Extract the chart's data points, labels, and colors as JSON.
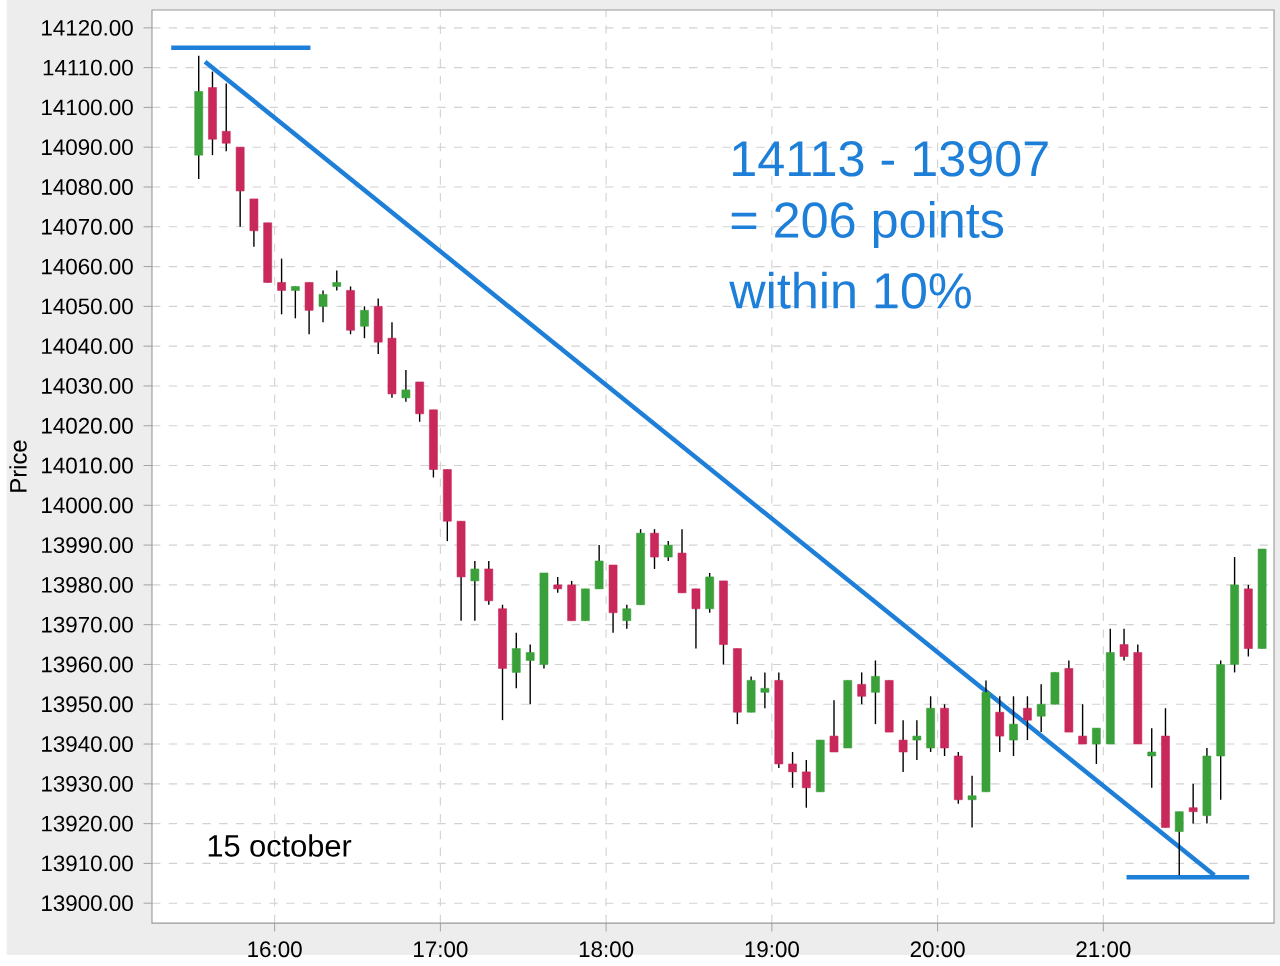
{
  "chart_data": {
    "type": "candlestick",
    "ylabel": "Price",
    "x": [
      15.542,
      15.625,
      15.708,
      15.792,
      15.875,
      15.958,
      16.042,
      16.125,
      16.208,
      16.292,
      16.375,
      16.458,
      16.542,
      16.625,
      16.708,
      16.792,
      16.875,
      16.958,
      17.042,
      17.125,
      17.208,
      17.292,
      17.375,
      17.458,
      17.542,
      17.625,
      17.708,
      17.792,
      17.875,
      17.958,
      18.042,
      18.125,
      18.208,
      18.292,
      18.375,
      18.458,
      18.542,
      18.625,
      18.708,
      18.792,
      18.875,
      18.958,
      19.042,
      19.125,
      19.208,
      19.292,
      19.375,
      19.458,
      19.542,
      19.625,
      19.708,
      19.792,
      19.875,
      19.958,
      20.042,
      20.125,
      20.208,
      20.292,
      20.375,
      20.458,
      20.542,
      20.625,
      20.708,
      20.792,
      20.875,
      20.958,
      21.042,
      21.125,
      21.208,
      21.292,
      21.375,
      21.458,
      21.542,
      21.625,
      21.708,
      21.792,
      21.875,
      21.958
    ],
    "ohlc": [
      [
        14088,
        14113,
        14082,
        14104
      ],
      [
        14105,
        14109,
        14088,
        14092
      ],
      [
        14094,
        14106,
        14089,
        14091
      ],
      [
        14090,
        14090,
        14070,
        14079
      ],
      [
        14077,
        14077,
        14065,
        14069
      ],
      [
        14071,
        14071,
        14056,
        14056
      ],
      [
        14056,
        14062,
        14048,
        14054
      ],
      [
        14054,
        14055,
        14047,
        14055
      ],
      [
        14056,
        14056,
        14043,
        14049
      ],
      [
        14050,
        14054,
        14046,
        14053
      ],
      [
        14055,
        14059,
        14054,
        14056
      ],
      [
        14054,
        14055,
        14043,
        14044
      ],
      [
        14045,
        14050,
        14042,
        14049
      ],
      [
        14050,
        14052,
        14038,
        14041
      ],
      [
        14042,
        14046,
        14027,
        14028
      ],
      [
        14027,
        14034,
        14026,
        14029
      ],
      [
        14031,
        14031,
        14021,
        14023
      ],
      [
        14024,
        14024,
        14007,
        14009
      ],
      [
        14009,
        14009,
        13991,
        13996
      ],
      [
        13996,
        13996,
        13971,
        13982
      ],
      [
        13981,
        13986,
        13971,
        13984
      ],
      [
        13984,
        13986,
        13975,
        13976
      ],
      [
        13974,
        13975,
        13946,
        13959
      ],
      [
        13958,
        13968,
        13954,
        13964
      ],
      [
        13961,
        13965,
        13950,
        13963
      ],
      [
        13960,
        13983,
        13959,
        13983
      ],
      [
        13980,
        13982,
        13978,
        13979
      ],
      [
        13980,
        13981,
        13971,
        13971
      ],
      [
        13971,
        13979,
        13971,
        13979
      ],
      [
        13979,
        13990,
        13979,
        13986
      ],
      [
        13985,
        13985,
        13968,
        13973
      ],
      [
        13971,
        13975,
        13969,
        13974
      ],
      [
        13975,
        13994,
        13975,
        13993
      ],
      [
        13993,
        13994,
        13984,
        13987
      ],
      [
        13987,
        13991,
        13986,
        13990
      ],
      [
        13988,
        13994,
        13978,
        13978
      ],
      [
        13979,
        13979,
        13964,
        13974
      ],
      [
        13974,
        13983,
        13973,
        13982
      ],
      [
        13981,
        13981,
        13960,
        13965
      ],
      [
        13964,
        13964,
        13945,
        13948
      ],
      [
        13948,
        13957,
        13948,
        13956
      ],
      [
        13953,
        13958,
        13949,
        13954
      ],
      [
        13956,
        13958,
        13934,
        13935
      ],
      [
        13935,
        13938,
        13929,
        13933
      ],
      [
        13933,
        13936,
        13924,
        13929
      ],
      [
        13928,
        13941,
        13928,
        13941
      ],
      [
        13942,
        13951,
        13938,
        13938
      ],
      [
        13939,
        13956,
        13939,
        13956
      ],
      [
        13955,
        13958,
        13950,
        13952
      ],
      [
        13953,
        13961,
        13945,
        13957
      ],
      [
        13956,
        13956,
        13943,
        13943
      ],
      [
        13941,
        13946,
        13933,
        13938
      ],
      [
        13941,
        13946,
        13936,
        13942
      ],
      [
        13939,
        13952,
        13938,
        13949
      ],
      [
        13949,
        13950,
        13937,
        13939
      ],
      [
        13937,
        13938,
        13925,
        13926
      ],
      [
        13926,
        13932,
        13919,
        13927
      ],
      [
        13928,
        13956,
        13928,
        13953
      ],
      [
        13948,
        13952,
        13938,
        13942
      ],
      [
        13941,
        13952,
        13937,
        13945
      ],
      [
        13949,
        13952,
        13941,
        13946
      ],
      [
        13947,
        13955,
        13943,
        13950
      ],
      [
        13950,
        13958,
        13950,
        13958
      ],
      [
        13959,
        13961,
        13943,
        13943
      ],
      [
        13942,
        13950,
        13940,
        13940
      ],
      [
        13940,
        13944,
        13935,
        13944
      ],
      [
        13940,
        13969,
        13940,
        13963
      ],
      [
        13965,
        13969,
        13961,
        13962
      ],
      [
        13963,
        13965,
        13940,
        13940
      ],
      [
        13937,
        13944,
        13929,
        13938
      ],
      [
        13942,
        13949,
        13919,
        13919
      ],
      [
        13918,
        13923,
        13907,
        13923
      ],
      [
        13924,
        13930,
        13920,
        13923
      ],
      [
        13922,
        13939,
        13920,
        13937
      ],
      [
        13937,
        13961,
        13926,
        13960
      ],
      [
        13960,
        13987,
        13958,
        13980
      ],
      [
        13979,
        13980,
        13962,
        13964
      ],
      [
        13964,
        13989,
        13964,
        13989
      ]
    ],
    "colors": [
      "#3aa03a",
      "#c8285a",
      "#c8285a",
      "#c8285a",
      "#c8285a",
      "#c8285a",
      "#c8285a",
      "#3aa03a",
      "#c8285a",
      "#3aa03a",
      "#3aa03a",
      "#c8285a",
      "#3aa03a",
      "#c8285a",
      "#c8285a",
      "#3aa03a",
      "#c8285a",
      "#c8285a",
      "#c8285a",
      "#c8285a",
      "#3aa03a",
      "#c8285a",
      "#c8285a",
      "#3aa03a",
      "#3aa03a",
      "#3aa03a",
      "#c8285a",
      "#c8285a",
      "#3aa03a",
      "#3aa03a",
      "#c8285a",
      "#3aa03a",
      "#3aa03a",
      "#c8285a",
      "#3aa03a",
      "#c8285a",
      "#c8285a",
      "#3aa03a",
      "#c8285a",
      "#c8285a",
      "#3aa03a",
      "#3aa03a",
      "#c8285a",
      "#c8285a",
      "#c8285a",
      "#3aa03a",
      "#c8285a",
      "#3aa03a",
      "#c8285a",
      "#3aa03a",
      "#c8285a",
      "#c8285a",
      "#3aa03a",
      "#3aa03a",
      "#c8285a",
      "#c8285a",
      "#3aa03a",
      "#3aa03a",
      "#c8285a",
      "#3aa03a",
      "#c8285a",
      "#3aa03a",
      "#3aa03a",
      "#c8285a",
      "#c8285a",
      "#3aa03a",
      "#3aa03a",
      "#c8285a",
      "#c8285a",
      "#3aa03a",
      "#c8285a",
      "#3aa03a",
      "#c8285a",
      "#3aa03a",
      "#3aa03a",
      "#3aa03a",
      "#c8285a",
      "#3aa03a"
    ],
    "series": [
      {
        "type": "line",
        "color": "#1e7fd8",
        "x": [
          15.376,
          16.216
        ],
        "values": [
          14115,
          14115
        ]
      },
      {
        "type": "line",
        "color": "#1e7fd8",
        "x": [
          15.58,
          21.67
        ],
        "values": [
          14111.5,
          13907
        ]
      },
      {
        "type": "line",
        "color": "#1e7fd8",
        "x": [
          21.14,
          21.88
        ],
        "values": [
          13906.5,
          13906.5
        ]
      }
    ],
    "annotations": [
      "14113 - 13907",
      "= 206 points",
      "within 10%",
      "15 october"
    ],
    "xlim": [
      15.26,
      22.03
    ],
    "ylim": [
      13895,
      14124.5
    ],
    "xticks": [
      {
        "value": 16,
        "label": "16:00"
      },
      {
        "value": 17,
        "label": "17:00"
      },
      {
        "value": 18,
        "label": "18:00"
      },
      {
        "value": 19,
        "label": "19:00"
      },
      {
        "value": 20,
        "label": "20:00"
      },
      {
        "value": 21,
        "label": "21:00"
      }
    ],
    "yticks": [
      {
        "value": 13900,
        "label": "13900.00"
      },
      {
        "value": 13910,
        "label": "13910.00"
      },
      {
        "value": 13920,
        "label": "13920.00"
      },
      {
        "value": 13930,
        "label": "13930.00"
      },
      {
        "value": 13940,
        "label": "13940.00"
      },
      {
        "value": 13950,
        "label": "13950.00"
      },
      {
        "value": 13960,
        "label": "13960.00"
      },
      {
        "value": 13970,
        "label": "13970.00"
      },
      {
        "value": 13980,
        "label": "13980.00"
      },
      {
        "value": 13990,
        "label": "13990.00"
      },
      {
        "value": 14000,
        "label": "14000.00"
      },
      {
        "value": 14010,
        "label": "14010.00"
      },
      {
        "value": 14020,
        "label": "14020.00"
      },
      {
        "value": 14030,
        "label": "14030.00"
      },
      {
        "value": 14040,
        "label": "14040.00"
      },
      {
        "value": 14050,
        "label": "14050.00"
      },
      {
        "value": 14060,
        "label": "14060.00"
      },
      {
        "value": 14070,
        "label": "14070.00"
      },
      {
        "value": 14080,
        "label": "14080.00"
      },
      {
        "value": 14090,
        "label": "14090.00"
      },
      {
        "value": 14100,
        "label": "14100.00"
      },
      {
        "value": 14110,
        "label": "14110.00"
      },
      {
        "value": 14120,
        "label": "14120.00"
      }
    ],
    "grid": true
  }
}
